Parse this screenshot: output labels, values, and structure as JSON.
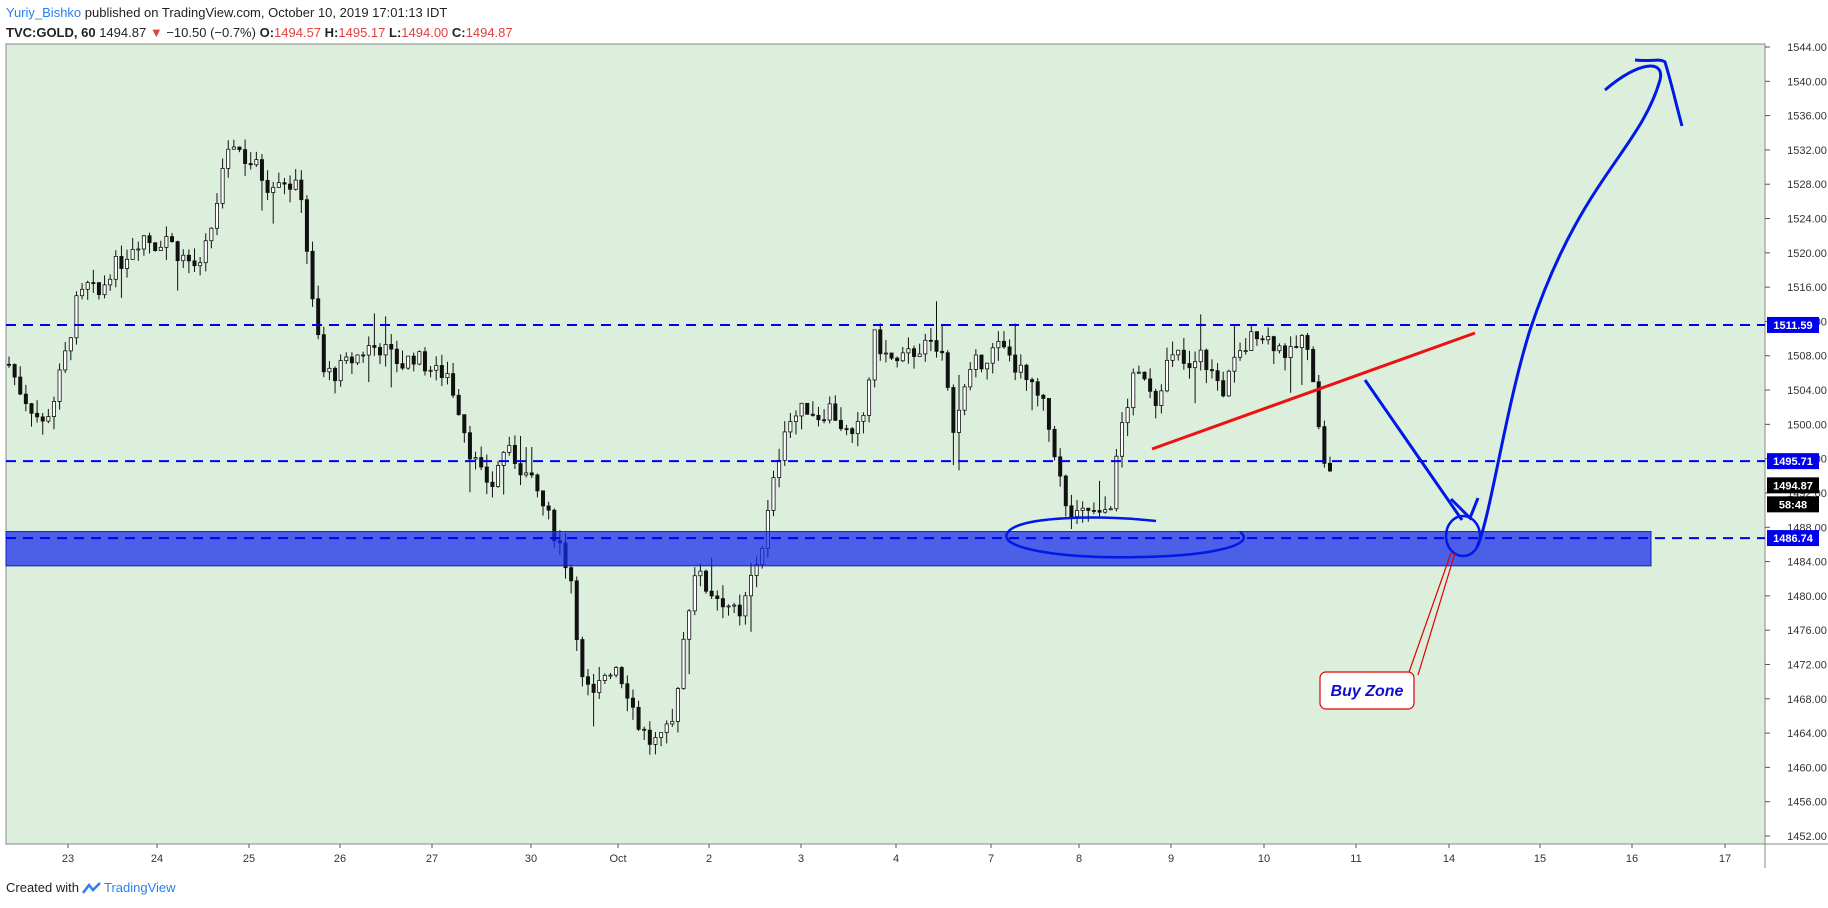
{
  "header": {
    "user": "Yuriy_Bishko",
    "published": "published on TradingView.com, October 10, 2019 17:01:13 IDT",
    "symbol": "TVC:GOLD, 60",
    "price": "1494.87",
    "change_arrow": "▼",
    "change": "−10.50 (−0.7%)",
    "o_label": "O:",
    "o_value": "1494.57",
    "h_label": "H:",
    "h_value": "1495.17",
    "l_label": "L:",
    "l_value": "1494.00",
    "c_label": "C:",
    "c_value": "1494.87"
  },
  "footer": {
    "created": "Created with",
    "brand": "TradingView",
    "brand_icon": "tradingview-logo-icon"
  },
  "colors": {
    "background": "#ffffff",
    "plot_bg": "#dcefdc",
    "level": "#0000ee",
    "zone": "rgba(20,40,235,0.72)",
    "trendline": "#ee1111",
    "drawing": "#0018e8",
    "candle": "#111111",
    "callout": "#e00000"
  },
  "chart_data": {
    "type": "candlestick",
    "symbol": "TVC:GOLD",
    "interval": "60",
    "ylim": [
      1452,
      1544
    ],
    "y_ticks": [
      1452,
      1456,
      1460,
      1464,
      1468,
      1472,
      1476,
      1480,
      1484,
      1488,
      1492,
      1496,
      1500,
      1504,
      1508,
      1512,
      1516,
      1520,
      1524,
      1528,
      1532,
      1536,
      1540,
      1544
    ],
    "x_labels": [
      "23",
      "24",
      "25",
      "26",
      "27",
      "30",
      "Oct",
      "2",
      "3",
      "4",
      "7",
      "8",
      "9",
      "10",
      "11",
      "14",
      "15",
      "16",
      "17"
    ],
    "price_path": [
      [
        0,
        1507
      ],
      [
        2,
        1504
      ],
      [
        4,
        1502
      ],
      [
        6,
        1500
      ],
      [
        8,
        1503
      ],
      [
        10,
        1508
      ],
      [
        12,
        1514
      ],
      [
        14,
        1516
      ],
      [
        16,
        1515
      ],
      [
        18,
        1518
      ],
      [
        20,
        1519
      ],
      [
        22,
        1521
      ],
      [
        24,
        1522
      ],
      [
        26,
        1521
      ],
      [
        28,
        1522
      ],
      [
        30,
        1520
      ],
      [
        32,
        1519
      ],
      [
        34,
        1518
      ],
      [
        36,
        1523
      ],
      [
        38,
        1529
      ],
      [
        40,
        1533
      ],
      [
        42,
        1531
      ],
      [
        44,
        1530
      ],
      [
        46,
        1528
      ],
      [
        48,
        1529
      ],
      [
        50,
        1528
      ],
      [
        52,
        1527
      ],
      [
        54,
        1514
      ],
      [
        56,
        1506
      ],
      [
        58,
        1506
      ],
      [
        60,
        1507
      ],
      [
        62,
        1508
      ],
      [
        64,
        1509
      ],
      [
        66,
        1509
      ],
      [
        68,
        1508
      ],
      [
        70,
        1507
      ],
      [
        72,
        1508
      ],
      [
        74,
        1507
      ],
      [
        76,
        1506
      ],
      [
        78,
        1506
      ],
      [
        80,
        1502
      ],
      [
        82,
        1497
      ],
      [
        84,
        1494
      ],
      [
        86,
        1493
      ],
      [
        88,
        1497
      ],
      [
        90,
        1496
      ],
      [
        92,
        1494
      ],
      [
        94,
        1492
      ],
      [
        96,
        1489
      ],
      [
        98,
        1486
      ],
      [
        100,
        1482
      ],
      [
        102,
        1470
      ],
      [
        104,
        1468
      ],
      [
        106,
        1471
      ],
      [
        108,
        1472
      ],
      [
        110,
        1469
      ],
      [
        112,
        1465
      ],
      [
        114,
        1463
      ],
      [
        116,
        1463
      ],
      [
        118,
        1465
      ],
      [
        120,
        1475
      ],
      [
        122,
        1483
      ],
      [
        124,
        1481
      ],
      [
        126,
        1480
      ],
      [
        128,
        1479
      ],
      [
        130,
        1477
      ],
      [
        132,
        1482
      ],
      [
        134,
        1486
      ],
      [
        136,
        1493
      ],
      [
        138,
        1500
      ],
      [
        140,
        1501
      ],
      [
        142,
        1502
      ],
      [
        144,
        1501
      ],
      [
        146,
        1502
      ],
      [
        148,
        1500
      ],
      [
        150,
        1498
      ],
      [
        152,
        1501
      ],
      [
        154,
        1510
      ],
      [
        156,
        1508
      ],
      [
        158,
        1507
      ],
      [
        160,
        1508
      ],
      [
        162,
        1509
      ],
      [
        164,
        1509
      ],
      [
        166,
        1508
      ],
      [
        168,
        1500
      ],
      [
        170,
        1504
      ],
      [
        172,
        1507
      ],
      [
        174,
        1508
      ],
      [
        176,
        1509
      ],
      [
        178,
        1508
      ],
      [
        180,
        1506
      ],
      [
        182,
        1504
      ],
      [
        184,
        1502
      ],
      [
        186,
        1497
      ],
      [
        188,
        1490
      ],
      [
        190,
        1489
      ],
      [
        192,
        1490
      ],
      [
        194,
        1489
      ],
      [
        196,
        1491
      ],
      [
        198,
        1500
      ],
      [
        200,
        1505
      ],
      [
        202,
        1506
      ],
      [
        204,
        1503
      ],
      [
        206,
        1507
      ],
      [
        208,
        1508
      ],
      [
        210,
        1506
      ],
      [
        212,
        1508
      ],
      [
        214,
        1506
      ],
      [
        216,
        1504
      ],
      [
        218,
        1507
      ],
      [
        220,
        1509
      ],
      [
        222,
        1511
      ],
      [
        224,
        1510
      ],
      [
        226,
        1509
      ],
      [
        228,
        1508
      ],
      [
        230,
        1510
      ],
      [
        232,
        1506
      ],
      [
        234,
        1495
      ]
    ],
    "total_bars": 236,
    "horizontal_levels": [
      {
        "price": 1511.59,
        "label": "1511.59",
        "style": "dashed"
      },
      {
        "price": 1495.71,
        "label": "1495.71",
        "style": "dashed"
      },
      {
        "price": 1486.74,
        "label": "1486.74",
        "style": "dashed"
      }
    ],
    "current_price": {
      "value": 1494.87,
      "label": "1494.87",
      "countdown": "58:48"
    },
    "zone": {
      "from": 1483.5,
      "to": 1487.5
    },
    "annotations": [
      {
        "text": "Buy Zone",
        "type": "callout"
      }
    ]
  }
}
